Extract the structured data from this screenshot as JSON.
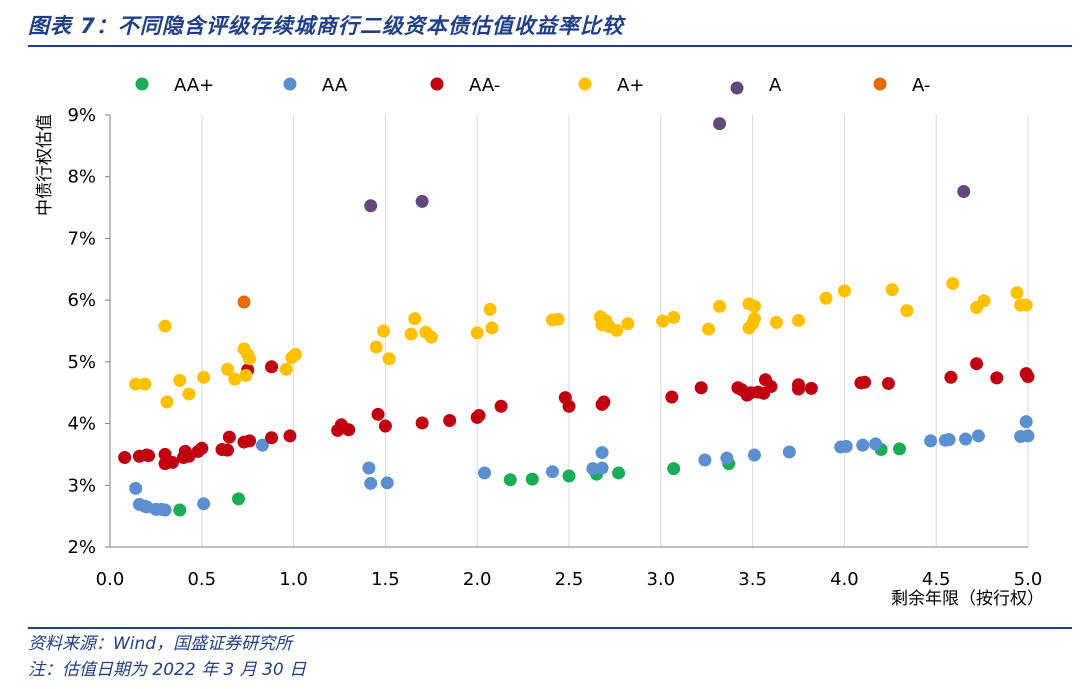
{
  "header": {
    "title": "图表 7：不同隐含评级存续城商行二级资本债估值收益率比较"
  },
  "footer": {
    "source": "资料来源：Wind，国盛证券研究所",
    "note": "注：估值日期为 2022 年 3 月 30 日"
  },
  "chart_data": {
    "type": "scatter",
    "title": "",
    "xlabel": "剩余年限（按行权）",
    "ylabel": "中债行权估值",
    "xlim": [
      0,
      5
    ],
    "ylim": [
      2,
      9
    ],
    "xticks": [
      "0.0",
      "0.5",
      "1.0",
      "1.5",
      "2.0",
      "2.5",
      "3.0",
      "3.5",
      "4.0",
      "4.5",
      "5.0"
    ],
    "yticks": [
      "2%",
      "3%",
      "4%",
      "5%",
      "6%",
      "7%",
      "8%",
      "9%"
    ],
    "grid": "vertical",
    "legend": "top",
    "series": [
      {
        "name": "AA+",
        "color": "#1aae54",
        "points": [
          [
            0.38,
            2.6
          ],
          [
            0.7,
            2.78
          ],
          [
            2.18,
            3.09
          ],
          [
            2.3,
            3.1
          ],
          [
            2.5,
            3.15
          ],
          [
            2.65,
            3.18
          ],
          [
            2.77,
            3.2
          ],
          [
            3.07,
            3.27
          ],
          [
            3.37,
            3.35
          ],
          [
            4.2,
            3.58
          ],
          [
            4.3,
            3.59
          ]
        ]
      },
      {
        "name": "AA",
        "color": "#5b8fd0",
        "points": [
          [
            0.14,
            2.95
          ],
          [
            0.16,
            2.69
          ],
          [
            0.19,
            2.66
          ],
          [
            0.2,
            2.65
          ],
          [
            0.25,
            2.61
          ],
          [
            0.28,
            2.61
          ],
          [
            0.3,
            2.6
          ],
          [
            0.51,
            2.7
          ],
          [
            0.83,
            3.65
          ],
          [
            1.41,
            3.28
          ],
          [
            1.42,
            3.03
          ],
          [
            1.51,
            3.04
          ],
          [
            2.04,
            3.2
          ],
          [
            2.41,
            3.22
          ],
          [
            2.63,
            3.27
          ],
          [
            2.68,
            3.53
          ],
          [
            2.68,
            3.28
          ],
          [
            3.24,
            3.41
          ],
          [
            3.36,
            3.44
          ],
          [
            3.51,
            3.49
          ],
          [
            3.7,
            3.54
          ],
          [
            3.98,
            3.62
          ],
          [
            4.01,
            3.63
          ],
          [
            4.1,
            3.65
          ],
          [
            4.17,
            3.67
          ],
          [
            4.47,
            3.72
          ],
          [
            4.55,
            3.73
          ],
          [
            4.57,
            3.74
          ],
          [
            4.66,
            3.75
          ],
          [
            4.73,
            3.8
          ],
          [
            4.96,
            3.79
          ],
          [
            4.99,
            4.03
          ],
          [
            5.0,
            3.8
          ]
        ]
      },
      {
        "name": "AA-",
        "color": "#c00010",
        "points": [
          [
            0.08,
            3.45
          ],
          [
            0.16,
            3.47
          ],
          [
            0.2,
            3.49
          ],
          [
            0.21,
            3.48
          ],
          [
            0.3,
            3.35
          ],
          [
            0.3,
            3.5
          ],
          [
            0.34,
            3.37
          ],
          [
            0.4,
            3.45
          ],
          [
            0.41,
            3.55
          ],
          [
            0.43,
            3.47
          ],
          [
            0.48,
            3.55
          ],
          [
            0.5,
            3.6
          ],
          [
            0.61,
            3.58
          ],
          [
            0.64,
            3.57
          ],
          [
            0.65,
            3.78
          ],
          [
            0.73,
            3.7
          ],
          [
            0.76,
            3.72
          ],
          [
            0.75,
            4.87
          ],
          [
            0.88,
            3.77
          ],
          [
            0.88,
            4.92
          ],
          [
            0.98,
            3.8
          ],
          [
            1.24,
            3.89
          ],
          [
            1.26,
            3.98
          ],
          [
            1.3,
            3.9
          ],
          [
            1.46,
            4.15
          ],
          [
            1.5,
            3.96
          ],
          [
            1.7,
            4.01
          ],
          [
            1.85,
            4.05
          ],
          [
            2.0,
            4.1
          ],
          [
            2.01,
            4.13
          ],
          [
            2.13,
            4.28
          ],
          [
            2.48,
            4.42
          ],
          [
            2.5,
            4.28
          ],
          [
            2.68,
            4.31
          ],
          [
            2.69,
            4.35
          ],
          [
            3.06,
            4.43
          ],
          [
            3.22,
            4.58
          ],
          [
            3.42,
            4.58
          ],
          [
            3.44,
            4.55
          ],
          [
            3.47,
            4.46
          ],
          [
            3.49,
            4.5
          ],
          [
            3.53,
            4.51
          ],
          [
            3.56,
            4.49
          ],
          [
            3.57,
            4.71
          ],
          [
            3.6,
            4.6
          ],
          [
            3.75,
            4.56
          ],
          [
            3.75,
            4.63
          ],
          [
            3.82,
            4.57
          ],
          [
            4.09,
            4.66
          ],
          [
            4.11,
            4.67
          ],
          [
            4.24,
            4.65
          ],
          [
            4.58,
            4.75
          ],
          [
            4.72,
            4.97
          ],
          [
            4.83,
            4.74
          ],
          [
            4.99,
            4.81
          ],
          [
            5.0,
            4.76
          ]
        ]
      },
      {
        "name": "A+",
        "color": "#ffc000",
        "points": [
          [
            0.14,
            4.64
          ],
          [
            0.19,
            4.64
          ],
          [
            0.3,
            5.58
          ],
          [
            0.31,
            4.35
          ],
          [
            0.38,
            4.7
          ],
          [
            0.43,
            4.48
          ],
          [
            0.51,
            4.75
          ],
          [
            0.64,
            4.88
          ],
          [
            0.68,
            4.72
          ],
          [
            0.73,
            5.21
          ],
          [
            0.74,
            4.78
          ],
          [
            0.75,
            5.12
          ],
          [
            0.76,
            5.05
          ],
          [
            0.96,
            4.88
          ],
          [
            0.99,
            5.07
          ],
          [
            1.01,
            5.12
          ],
          [
            1.45,
            5.24
          ],
          [
            1.49,
            5.5
          ],
          [
            1.52,
            5.05
          ],
          [
            1.64,
            5.45
          ],
          [
            1.66,
            5.7
          ],
          [
            1.72,
            5.48
          ],
          [
            1.75,
            5.4
          ],
          [
            2.0,
            5.47
          ],
          [
            2.07,
            5.85
          ],
          [
            2.08,
            5.55
          ],
          [
            2.41,
            5.68
          ],
          [
            2.44,
            5.69
          ],
          [
            2.67,
            5.73
          ],
          [
            2.68,
            5.6
          ],
          [
            2.7,
            5.67
          ],
          [
            2.72,
            5.57
          ],
          [
            2.76,
            5.51
          ],
          [
            2.82,
            5.62
          ],
          [
            3.01,
            5.66
          ],
          [
            3.07,
            5.72
          ],
          [
            3.26,
            5.53
          ],
          [
            3.32,
            5.9
          ],
          [
            3.48,
            5.94
          ],
          [
            3.48,
            5.55
          ],
          [
            3.5,
            5.62
          ],
          [
            3.51,
            5.7
          ],
          [
            3.51,
            5.9
          ],
          [
            3.63,
            5.64
          ],
          [
            3.75,
            5.67
          ],
          [
            3.9,
            6.03
          ],
          [
            4.0,
            6.15
          ],
          [
            4.26,
            6.17
          ],
          [
            4.34,
            5.83
          ],
          [
            4.59,
            6.27
          ],
          [
            4.72,
            5.88
          ],
          [
            4.76,
            5.99
          ],
          [
            4.94,
            6.12
          ],
          [
            4.96,
            5.92
          ],
          [
            4.99,
            5.92
          ]
        ]
      },
      {
        "name": "A",
        "color": "#604a7b",
        "points": [
          [
            1.42,
            7.53
          ],
          [
            1.7,
            7.6
          ],
          [
            3.32,
            8.86
          ],
          [
            4.65,
            7.76
          ]
        ]
      },
      {
        "name": "A-",
        "color": "#e46c0a",
        "points": [
          [
            0.73,
            5.97
          ]
        ]
      }
    ]
  }
}
